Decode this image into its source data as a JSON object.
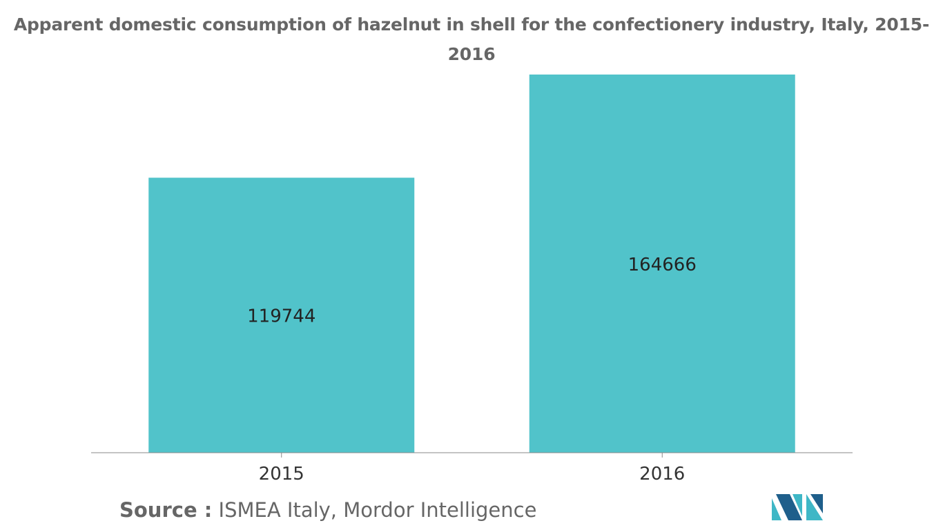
{
  "title": "Apparent domestic consumption of hazelnut in shell for the confectionery industry, Italy, 2015-2016",
  "source": {
    "label": "Source :",
    "text": "ISMEA Italy, Mordor Intelligence"
  },
  "colors": {
    "bar": "#51C3CA",
    "title": "#666666",
    "axis": "#888888",
    "logo_dark": "#1F5F8B",
    "logo_light": "#3FB7C6"
  },
  "chart_data": {
    "type": "bar",
    "categories": [
      "2015",
      "2016"
    ],
    "values": [
      119744,
      164666
    ],
    "title": "Apparent domestic consumption of hazelnut in shell for the confectionery industry, Italy, 2015-2016",
    "xlabel": "",
    "ylabel": "",
    "ylim": [
      0,
      164666
    ],
    "grid": false,
    "data_labels": true,
    "legend": "none"
  }
}
